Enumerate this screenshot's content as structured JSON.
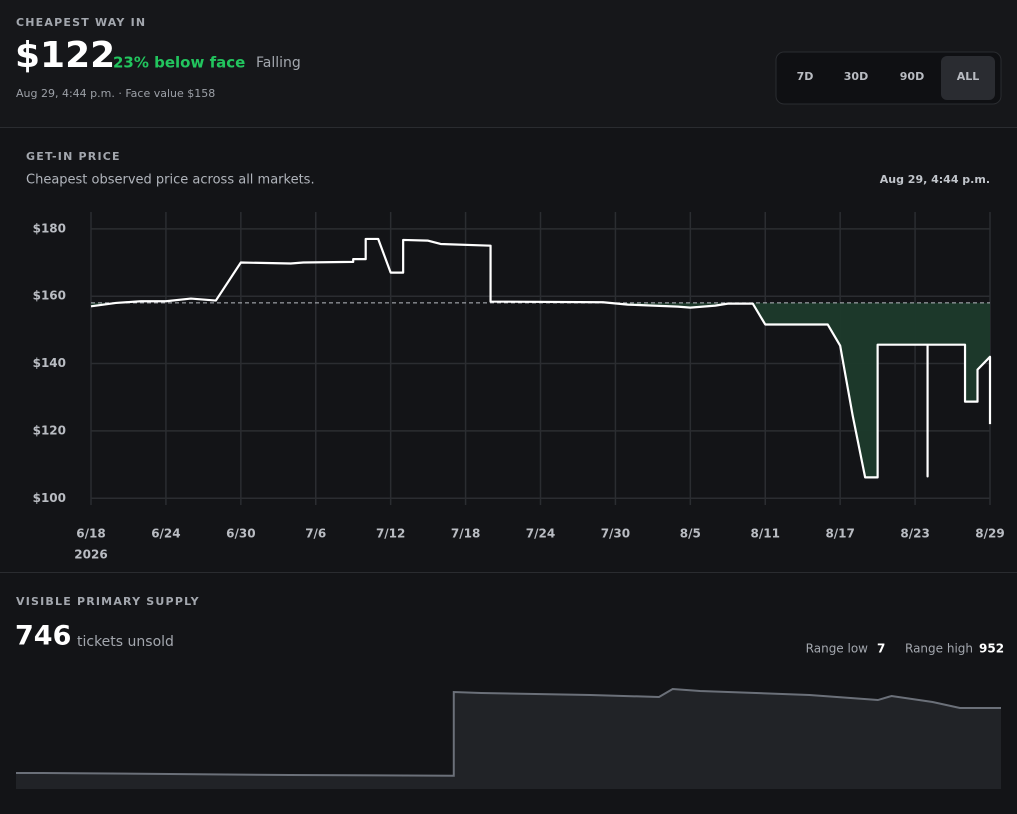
{
  "header": {
    "label": "CHEAPEST WAY IN",
    "price": "$122",
    "discount": "23% below face",
    "trend": "Falling",
    "meta": "Aug 29, 4:44 p.m. · Face value $158",
    "ranges": [
      "7D",
      "30D",
      "90D",
      "ALL"
    ],
    "active_range": "ALL"
  },
  "price_section": {
    "label": "GET-IN PRICE",
    "subtitle": "Cheapest observed price across all markets.",
    "timestamp": "Aug 29, 4:44 p.m."
  },
  "chart_data": [
    {
      "type": "line",
      "x": [
        "2026-06-18",
        "2026-06-20",
        "2026-06-22",
        "2026-06-24",
        "2026-06-26",
        "2026-06-28",
        "2026-06-30",
        "2026-07-04",
        "2026-07-05",
        "2026-07-09",
        "2026-07-09",
        "2026-07-10",
        "2026-07-10",
        "2026-07-11",
        "2026-07-12",
        "2026-07-13",
        "2026-07-13",
        "2026-07-15",
        "2026-07-16",
        "2026-07-20",
        "2026-07-20",
        "2026-07-29",
        "2026-07-31",
        "2026-08-04",
        "2026-08-05",
        "2026-08-07",
        "2026-08-08",
        "2026-08-10",
        "2026-08-11",
        "2026-08-16",
        "2026-08-17",
        "2026-08-18",
        "2026-08-19",
        "2026-08-20",
        "2026-08-20",
        "2026-08-24",
        "2026-08-24",
        "2026-08-24",
        "2026-08-27",
        "2026-08-27",
        "2026-08-28",
        "2026-08-28",
        "2026-08-29",
        "2026-08-29",
        "2026-08-29",
        "2026-08-29"
      ],
      "series": [
        {
          "color": "#ffffff",
          "values": [
            157,
            158,
            158.5,
            158.5,
            159.3,
            158.7,
            170,
            169.7,
            170,
            170.2,
            171,
            171,
            177,
            177,
            167,
            167,
            176.7,
            176.5,
            175.5,
            175,
            158.4,
            158.2,
            157.5,
            156.9,
            156.6,
            157.2,
            157.8,
            157.8,
            151.6,
            151.6,
            145.3,
            124.6,
            106.2,
            106.2,
            145.6,
            145.6,
            106.5,
            145.6,
            145.6,
            128.7,
            128.7,
            138.2,
            142,
            126,
            130.8,
            122
          ]
        }
      ],
      "reference_line": 158,
      "below_color": "#1c3a2b",
      "xlim": [
        "2026-06-18",
        "2026-08-29"
      ],
      "xticks": [
        {
          "value": "2026-06-18",
          "label": "6/18"
        },
        {
          "value": "2026-06-24",
          "label": "6/24"
        },
        {
          "value": "2026-06-30",
          "label": "6/30"
        },
        {
          "value": "2026-07-06",
          "label": "7/6"
        },
        {
          "value": "2026-07-12",
          "label": "7/12"
        },
        {
          "value": "2026-07-18",
          "label": "7/18"
        },
        {
          "value": "2026-07-24",
          "label": "7/24"
        },
        {
          "value": "2026-07-30",
          "label": "7/30"
        },
        {
          "value": "2026-08-05",
          "label": "8/5"
        },
        {
          "value": "2026-08-11",
          "label": "8/11"
        },
        {
          "value": "2026-08-17",
          "label": "8/17"
        },
        {
          "value": "2026-08-23",
          "label": "8/23"
        },
        {
          "value": "2026-08-29",
          "label": "8/29"
        }
      ],
      "year_label": "2026",
      "ylim": [
        98,
        185
      ],
      "yticks": [
        {
          "value": 100,
          "label": "$100"
        },
        {
          "value": 120,
          "label": "$120"
        },
        {
          "value": 140,
          "label": "$140"
        },
        {
          "value": 160,
          "label": "$160"
        },
        {
          "value": 180,
          "label": "$180"
        }
      ],
      "grid": true
    },
    {
      "type": "area",
      "title": "VISIBLE PRIMARY SUPPLY",
      "current": "746",
      "current_unit": "tickets unsold",
      "range_low_label": "Range low",
      "range_low": 7,
      "range_high_label": "Range high",
      "range_high": 952,
      "x": [
        "2026-06-18",
        "2026-06-20",
        "2026-07-08",
        "2026-07-20",
        "2026-07-20",
        "2026-07-22",
        "2026-07-30",
        "2026-08-04",
        "2026-08-05",
        "2026-08-07",
        "2026-08-15",
        "2026-08-20",
        "2026-08-21",
        "2026-08-24",
        "2026-08-26",
        "2026-08-29"
      ],
      "values": [
        40,
        40,
        18,
        10,
        919,
        909,
        887,
        865,
        952,
        930,
        887,
        832,
        876,
        811,
        746,
        746
      ],
      "color": "#6b7079",
      "fill": "#212327"
    }
  ]
}
